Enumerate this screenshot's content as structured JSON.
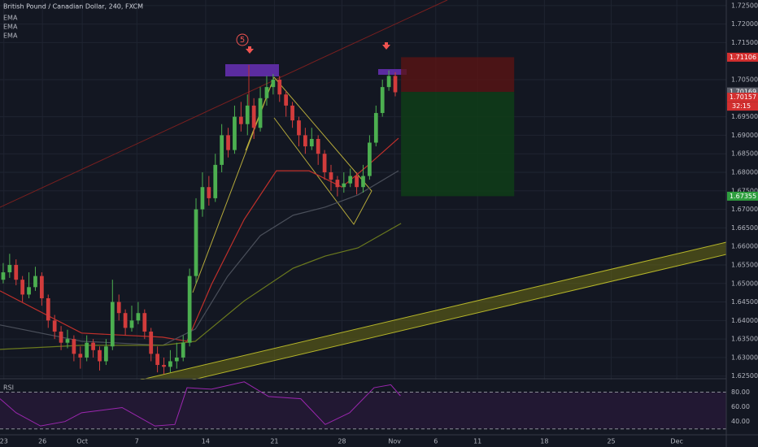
{
  "chart_data": {
    "type": "candlestick",
    "title": "British Pound / Canadian Dollar, 240, FXCM",
    "annotation": "5",
    "up_color": "#4caf50",
    "down_color": "#d23c3c",
    "candles": {
      "open": [
        1.651,
        1.653,
        1.655,
        1.651,
        1.647,
        1.649,
        1.652,
        1.646,
        1.64,
        1.637,
        1.634,
        1.635,
        1.631,
        1.63,
        1.634,
        1.632,
        1.629,
        1.633,
        1.645,
        1.642,
        1.638,
        1.64,
        1.642,
        1.637,
        1.631,
        1.628,
        1.6275,
        1.629,
        1.63,
        1.634,
        1.652,
        1.67,
        1.676,
        1.673,
        1.682,
        1.69,
        1.686,
        1.695,
        1.693,
        1.698,
        1.692,
        1.7,
        1.703,
        1.705,
        1.701,
        1.698,
        1.694,
        1.69,
        1.687,
        1.689,
        1.685,
        1.68,
        1.678,
        1.676,
        1.677,
        1.679,
        1.676,
        1.679,
        1.688,
        1.696,
        1.703,
        1.706
      ],
      "high": [
        1.6555,
        1.658,
        1.6565,
        1.652,
        1.653,
        1.6545,
        1.653,
        1.647,
        1.6415,
        1.6385,
        1.6375,
        1.636,
        1.633,
        1.636,
        1.635,
        1.633,
        1.635,
        1.651,
        1.647,
        1.643,
        1.644,
        1.645,
        1.643,
        1.638,
        1.633,
        1.63,
        1.632,
        1.634,
        1.636,
        1.654,
        1.673,
        1.68,
        1.679,
        1.685,
        1.693,
        1.692,
        1.698,
        1.699,
        1.701,
        1.7,
        1.703,
        1.706,
        1.7065,
        1.706,
        1.702,
        1.699,
        1.695,
        1.692,
        1.692,
        1.69,
        1.686,
        1.682,
        1.679,
        1.68,
        1.681,
        1.68,
        1.682,
        1.69,
        1.698,
        1.705,
        1.7075,
        1.707
      ],
      "low": [
        1.65,
        1.6515,
        1.6495,
        1.645,
        1.646,
        1.648,
        1.644,
        1.638,
        1.635,
        1.632,
        1.6325,
        1.629,
        1.627,
        1.629,
        1.63,
        1.6265,
        1.628,
        1.632,
        1.64,
        1.636,
        1.637,
        1.639,
        1.635,
        1.629,
        1.626,
        1.6255,
        1.626,
        1.627,
        1.629,
        1.633,
        1.65,
        1.668,
        1.671,
        1.672,
        1.68,
        1.684,
        1.685,
        1.691,
        1.69,
        1.689,
        1.691,
        1.698,
        1.701,
        1.699,
        1.695,
        1.692,
        1.687,
        1.685,
        1.686,
        1.682,
        1.678,
        1.675,
        1.6735,
        1.6745,
        1.676,
        1.674,
        1.6745,
        1.678,
        1.687,
        1.695,
        1.702,
        1.7005
      ],
      "close": [
        1.653,
        1.655,
        1.651,
        1.647,
        1.649,
        1.652,
        1.646,
        1.64,
        1.637,
        1.634,
        1.635,
        1.631,
        1.63,
        1.634,
        1.632,
        1.629,
        1.633,
        1.645,
        1.642,
        1.638,
        1.64,
        1.642,
        1.637,
        1.631,
        1.628,
        1.6275,
        1.629,
        1.63,
        1.634,
        1.652,
        1.67,
        1.676,
        1.673,
        1.682,
        1.69,
        1.686,
        1.695,
        1.693,
        1.698,
        1.692,
        1.7,
        1.703,
        1.705,
        1.701,
        1.698,
        1.694,
        1.69,
        1.687,
        1.689,
        1.685,
        1.68,
        1.678,
        1.676,
        1.677,
        1.679,
        1.676,
        1.679,
        1.688,
        1.696,
        1.703,
        1.706,
        1.7016
      ]
    },
    "emas": [
      {
        "name": "EMA",
        "color": "#c0302b",
        "x": [
          0,
          12.7,
          25.3,
          29.1,
          32.9,
          38,
          43,
          48.1,
          53.2,
          57,
          62
        ],
        "values": [
          1.648,
          1.6366,
          1.6355,
          1.6344,
          1.6497,
          1.6673,
          1.6804,
          1.6804,
          1.676,
          1.6815,
          1.6892
        ]
      },
      {
        "name": "EMA",
        "color": "#4a4f5a",
        "x": [
          0,
          12.7,
          25.3,
          30.4,
          35.4,
          40.5,
          45.6,
          50.6,
          55.7,
          62
        ],
        "values": [
          1.6388,
          1.6344,
          1.6333,
          1.6377,
          1.6519,
          1.6629,
          1.6684,
          1.6706,
          1.6739,
          1.6804
        ]
      },
      {
        "name": "EMA",
        "color": "#6b7a1e",
        "x": [
          0,
          12.7,
          25.3,
          30.4,
          38,
          45.6,
          50.6,
          55.7,
          62.4
        ],
        "values": [
          1.6322,
          1.6333,
          1.6333,
          1.6344,
          1.6453,
          1.6541,
          1.6574,
          1.6596,
          1.6662
        ]
      }
    ],
    "xlim": [
      0,
      113
    ],
    "xticks": [
      {
        "value": 0.6,
        "label": "23"
      },
      {
        "value": 6.6,
        "label": "26"
      },
      {
        "value": 12.8,
        "label": "Oct"
      },
      {
        "value": 21.3,
        "label": "7"
      },
      {
        "value": 32,
        "label": "14"
      },
      {
        "value": 42.7,
        "label": "21"
      },
      {
        "value": 53.2,
        "label": "28"
      },
      {
        "value": 61.4,
        "label": "Nov"
      },
      {
        "value": 67.8,
        "label": "6"
      },
      {
        "value": 74.3,
        "label": "11"
      },
      {
        "value": 84.7,
        "label": "18"
      },
      {
        "value": 95.1,
        "label": "25"
      },
      {
        "value": 105.3,
        "label": "Dec"
      }
    ],
    "ylim": [
      1.6245,
      1.7265
    ],
    "yticks": [
      {
        "value": 1.725,
        "label": "1.72500"
      },
      {
        "value": 1.72,
        "label": "1.72000"
      },
      {
        "value": 1.715,
        "label": "1.71500"
      },
      {
        "value": 1.705,
        "label": "1.70500"
      },
      {
        "value": 1.695,
        "label": "1.69500"
      },
      {
        "value": 1.69,
        "label": "1.69000"
      },
      {
        "value": 1.685,
        "label": "1.68500"
      },
      {
        "value": 1.68,
        "label": "1.68000"
      },
      {
        "value": 1.675,
        "label": "1.67500"
      },
      {
        "value": 1.67,
        "label": "1.67000"
      },
      {
        "value": 1.665,
        "label": "1.66500"
      },
      {
        "value": 1.66,
        "label": "1.66000"
      },
      {
        "value": 1.655,
        "label": "1.65500"
      },
      {
        "value": 1.65,
        "label": "1.65000"
      },
      {
        "value": 1.645,
        "label": "1.64500"
      },
      {
        "value": 1.64,
        "label": "1.64000"
      },
      {
        "value": 1.635,
        "label": "1.63500"
      },
      {
        "value": 1.63,
        "label": "1.63000"
      },
      {
        "value": 1.625,
        "label": "1.62500"
      }
    ],
    "grid": true,
    "position": {
      "stop": {
        "value": 1.71106,
        "label": "1.71106",
        "color": "#d32f2f"
      },
      "entry": {
        "value": 1.70169,
        "label": "1.70169",
        "color": "#5d606b"
      },
      "target": {
        "value": 1.67355,
        "label": "1.67355",
        "color": "#2e9e3e"
      }
    },
    "last_price": {
      "value": 1.70157,
      "label": "1.70157",
      "color": "#d32f2f"
    },
    "countdown": "32:15",
    "rsi": {
      "name": "RSI",
      "color": "#9c27b0",
      "x": [
        0,
        2.5,
        6.3,
        10.1,
        12.7,
        19,
        24.1,
        27.2,
        29.1,
        32.9,
        38,
        41.8,
        46.8,
        50.6,
        54.4,
        58.2,
        60.8,
        62.3
      ],
      "values": [
        71,
        52,
        34,
        40,
        52,
        59,
        34,
        36,
        86,
        84,
        94,
        74,
        71,
        36,
        52,
        86,
        90,
        75
      ],
      "ylim": [
        22,
        96
      ],
      "yticks": [
        {
          "value": 80,
          "label": "80.00"
        },
        {
          "value": 60,
          "label": "60.00"
        },
        {
          "value": 40,
          "label": "40.00"
        }
      ],
      "bands": [
        80,
        30
      ]
    }
  }
}
